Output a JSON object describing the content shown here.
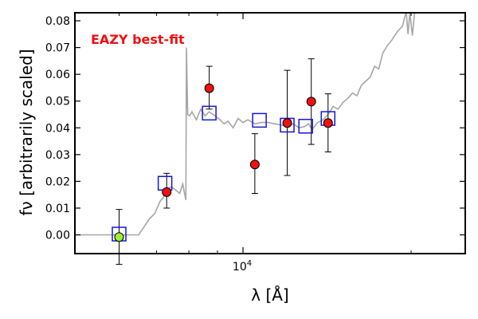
{
  "chart_data": {
    "type": "scatter",
    "annotation": "EAZY best-fit",
    "xlabel": "λ [Å]",
    "ylabel": "fν [arbitrarily scaled]",
    "x_scale": "log",
    "xlim": [
      5000,
      25000
    ],
    "ylim": [
      -0.007,
      0.083
    ],
    "yticks": [
      0.0,
      0.01,
      0.02,
      0.03,
      0.04,
      0.05,
      0.06,
      0.07,
      0.08
    ],
    "ytick_labels": [
      "0.00",
      "0.01",
      "0.02",
      "0.03",
      "0.04",
      "0.05",
      "0.06",
      "0.07",
      "0.08"
    ],
    "xtick_major": [
      {
        "value": 10000,
        "label": "10",
        "exponent": "4"
      }
    ],
    "xtick_minor": [
      6000,
      7000,
      8000,
      9000,
      20000
    ],
    "grid": false,
    "colors": {
      "sed": "#a6a6a6",
      "model": "#1515e0",
      "observed": "#ee1111",
      "lowsn": "#9cf030",
      "annotation": "#ee1111"
    },
    "observed": [
      {
        "x": 7300,
        "y": 0.016,
        "err_lo": 0.01,
        "err_hi": 0.023
      },
      {
        "x": 8700,
        "y": 0.0548,
        "err_lo": 0.047,
        "err_hi": 0.063
      },
      {
        "x": 10500,
        "y": 0.0263,
        "err_lo": 0.0155,
        "err_hi": 0.0378
      },
      {
        "x": 12000,
        "y": 0.0418,
        "err_lo": 0.0222,
        "err_hi": 0.0615
      },
      {
        "x": 13250,
        "y": 0.0498,
        "err_lo": 0.0338,
        "err_hi": 0.0658
      },
      {
        "x": 14200,
        "y": 0.0418,
        "err_lo": 0.031,
        "err_hi": 0.0527
      }
    ],
    "low_sn": [
      {
        "x": 6000,
        "y": -0.0008,
        "err_lo": -0.011,
        "err_hi": 0.0095
      }
    ],
    "model": [
      {
        "x": 6000,
        "y": 0.0003
      },
      {
        "x": 7250,
        "y": 0.0193
      },
      {
        "x": 8700,
        "y": 0.0455
      },
      {
        "x": 10700,
        "y": 0.0428
      },
      {
        "x": 12000,
        "y": 0.041
      },
      {
        "x": 12950,
        "y": 0.0406
      },
      {
        "x": 14200,
        "y": 0.0435
      }
    ],
    "sed": [
      [
        5000,
        0.0
      ],
      [
        6100,
        0.0
      ],
      [
        6250,
        0.0
      ],
      [
        6500,
        0.0
      ],
      [
        6600,
        0.002
      ],
      [
        6800,
        0.006
      ],
      [
        6950,
        0.008
      ],
      [
        7100,
        0.0125
      ],
      [
        7200,
        0.014
      ],
      [
        7300,
        0.017
      ],
      [
        7450,
        0.018
      ],
      [
        7550,
        0.017
      ],
      [
        7700,
        0.0155
      ],
      [
        7800,
        0.019
      ],
      [
        7900,
        0.013
      ],
      [
        7920,
        0.07
      ],
      [
        7960,
        0.045
      ],
      [
        8020,
        0.0445
      ],
      [
        8100,
        0.046
      ],
      [
        8250,
        0.043
      ],
      [
        8400,
        0.047
      ],
      [
        8550,
        0.0445
      ],
      [
        8700,
        0.046
      ],
      [
        8900,
        0.0445
      ],
      [
        9100,
        0.043
      ],
      [
        9250,
        0.0415
      ],
      [
        9400,
        0.0425
      ],
      [
        9600,
        0.04
      ],
      [
        9800,
        0.0435
      ],
      [
        10000,
        0.042
      ],
      [
        10200,
        0.043
      ],
      [
        10500,
        0.0415
      ],
      [
        10800,
        0.042
      ],
      [
        11100,
        0.042
      ],
      [
        11400,
        0.0415
      ],
      [
        11700,
        0.041
      ],
      [
        12000,
        0.0405
      ],
      [
        12300,
        0.0415
      ],
      [
        12600,
        0.04
      ],
      [
        12900,
        0.0405
      ],
      [
        13100,
        0.0415
      ],
      [
        13300,
        0.0395
      ],
      [
        13600,
        0.042
      ],
      [
        13900,
        0.043
      ],
      [
        14200,
        0.045
      ],
      [
        14500,
        0.048
      ],
      [
        14800,
        0.047
      ],
      [
        15100,
        0.0495
      ],
      [
        15400,
        0.051
      ],
      [
        15700,
        0.053
      ],
      [
        16000,
        0.052
      ],
      [
        16300,
        0.056
      ],
      [
        16600,
        0.0575
      ],
      [
        16900,
        0.059
      ],
      [
        17200,
        0.063
      ],
      [
        17500,
        0.062
      ],
      [
        17800,
        0.068
      ],
      [
        18100,
        0.0705
      ],
      [
        18500,
        0.073
      ],
      [
        18900,
        0.076
      ],
      [
        19300,
        0.078
      ],
      [
        19600,
        0.0835
      ],
      [
        19750,
        0.075
      ],
      [
        19900,
        0.083
      ],
      [
        20100,
        0.0745
      ],
      [
        20300,
        0.0835
      ]
    ]
  }
}
